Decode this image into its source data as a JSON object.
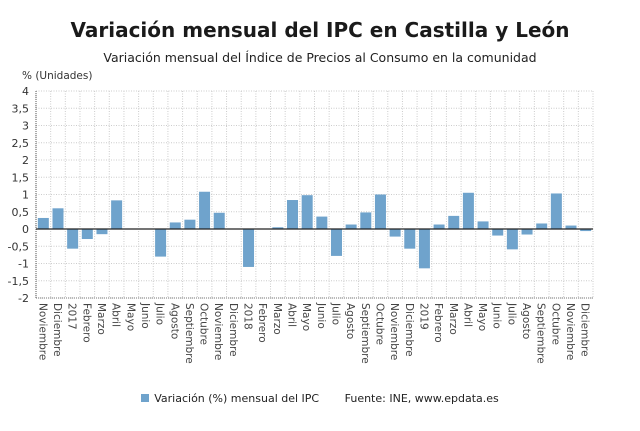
{
  "chart_data": {
    "type": "bar",
    "title": "Variación mensual del IPC en Castilla y León",
    "subtitle": "Variación mensual del Índice de Precios al Consumo en la comunidad",
    "ylabel": "% (Unidades)",
    "xlabel": "",
    "ylim": [
      -2,
      4
    ],
    "yticks": [
      "-2",
      "-1,5",
      "-1",
      "-0,5",
      "0",
      "0,5",
      "1",
      "1,5",
      "2",
      "2,5",
      "3",
      "3,5",
      "4"
    ],
    "grid": true,
    "legend_position": "bottom",
    "bar_color": "#6fa3cc",
    "categories": [
      "Noviembre",
      "Diciembre",
      "2017",
      "Febrero",
      "Marzo",
      "Abril",
      "Mayo",
      "Junio",
      "Julio",
      "Agosto",
      "Septiembre",
      "Octubre",
      "Noviembre",
      "Diciembre",
      "2018",
      "Febrero",
      "Marzo",
      "Abril",
      "Mayo",
      "Junio",
      "Julio",
      "Agosto",
      "Septiembre",
      "Octubre",
      "Noviembre",
      "Diciembre",
      "2019",
      "Febrero",
      "Marzo",
      "Abril",
      "Mayo",
      "Junio",
      "Julio",
      "Agosto",
      "Septiembre",
      "Octubre",
      "Noviembre",
      "Diciembre"
    ],
    "series": [
      {
        "name": "Variación (%) mensual del IPC",
        "values": [
          0.32,
          0.6,
          -0.57,
          -0.29,
          -0.15,
          0.83,
          0.0,
          0.0,
          -0.8,
          0.19,
          0.27,
          1.08,
          0.47,
          0.0,
          -1.1,
          0.0,
          0.05,
          0.84,
          0.98,
          0.36,
          -0.78,
          0.13,
          0.48,
          1.0,
          -0.22,
          -0.57,
          -1.14,
          0.13,
          0.38,
          1.05,
          0.22,
          -0.19,
          -0.59,
          -0.16,
          0.16,
          1.03,
          0.1,
          -0.06
        ]
      }
    ],
    "source": "Fuente: INE, www.epdata.es"
  }
}
